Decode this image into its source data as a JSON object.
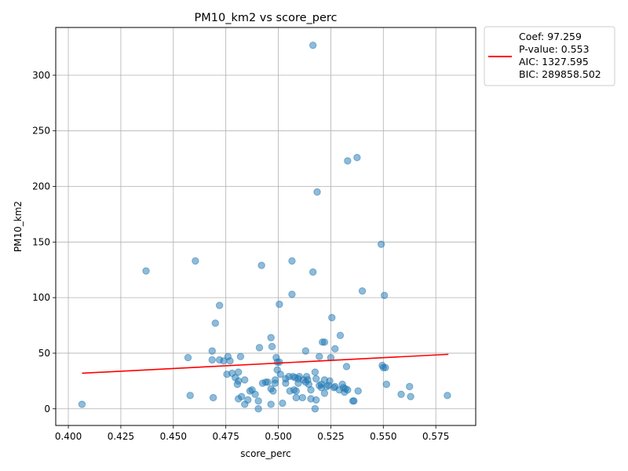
{
  "chart_data": {
    "type": "scatter",
    "title": "PM10_km2 vs score_perc",
    "xlabel": "score_perc",
    "ylabel": "PM10_km2",
    "xlim": [
      0.394,
      0.594
    ],
    "ylim": [
      -15,
      343
    ],
    "x_ticks": [
      "0.400",
      "0.425",
      "0.450",
      "0.475",
      "0.500",
      "0.525",
      "0.550",
      "0.575"
    ],
    "x_tick_values": [
      0.4,
      0.425,
      0.45,
      0.475,
      0.5,
      0.525,
      0.55,
      0.575
    ],
    "y_ticks": [
      "0",
      "50",
      "100",
      "150",
      "200",
      "250",
      "300"
    ],
    "y_tick_values": [
      0,
      50,
      100,
      150,
      200,
      250,
      300
    ],
    "grid": true,
    "point_color": "#1f77b4",
    "line_color": "#ff0000",
    "legend_position": "outside-top-right",
    "legend": {
      "lines": [
        "Coef: 97.259",
        "P-value: 0.553",
        "AIC: 1327.595",
        "BIC: 289858.502"
      ]
    },
    "trend_line": {
      "x": [
        0.4065,
        0.581
      ],
      "y": [
        32,
        49
      ]
    },
    "points": [
      [
        0.4065,
        4
      ],
      [
        0.437,
        124
      ],
      [
        0.457,
        46
      ],
      [
        0.458,
        12
      ],
      [
        0.4605,
        133
      ],
      [
        0.4685,
        52
      ],
      [
        0.4685,
        44
      ],
      [
        0.469,
        10
      ],
      [
        0.47,
        77
      ],
      [
        0.472,
        93
      ],
      [
        0.472,
        44
      ],
      [
        0.474,
        43
      ],
      [
        0.4755,
        31
      ],
      [
        0.476,
        47
      ],
      [
        0.477,
        43
      ],
      [
        0.478,
        32
      ],
      [
        0.4795,
        28
      ],
      [
        0.4805,
        22
      ],
      [
        0.481,
        25
      ],
      [
        0.481,
        33
      ],
      [
        0.482,
        47
      ],
      [
        0.481,
        9
      ],
      [
        0.4825,
        11
      ],
      [
        0.484,
        26
      ],
      [
        0.484,
        4
      ],
      [
        0.4855,
        8
      ],
      [
        0.4865,
        16
      ],
      [
        0.4875,
        17
      ],
      [
        0.489,
        13
      ],
      [
        0.4905,
        7
      ],
      [
        0.4905,
        0
      ],
      [
        0.491,
        55
      ],
      [
        0.492,
        129
      ],
      [
        0.4925,
        23
      ],
      [
        0.494,
        24
      ],
      [
        0.495,
        24
      ],
      [
        0.4965,
        18
      ],
      [
        0.4965,
        4
      ],
      [
        0.4965,
        64
      ],
      [
        0.497,
        56
      ],
      [
        0.4975,
        16
      ],
      [
        0.4985,
        26
      ],
      [
        0.4985,
        23
      ],
      [
        0.499,
        46
      ],
      [
        0.4995,
        35
      ],
      [
        0.4995,
        42
      ],
      [
        0.5005,
        94
      ],
      [
        0.5005,
        42
      ],
      [
        0.501,
        31
      ],
      [
        0.502,
        5
      ],
      [
        0.5035,
        27
      ],
      [
        0.5035,
        23
      ],
      [
        0.505,
        29
      ],
      [
        0.5055,
        16
      ],
      [
        0.5065,
        103
      ],
      [
        0.5065,
        133
      ],
      [
        0.507,
        29
      ],
      [
        0.5075,
        17
      ],
      [
        0.508,
        28
      ],
      [
        0.5085,
        10
      ],
      [
        0.5085,
        16
      ],
      [
        0.5095,
        27
      ],
      [
        0.5095,
        23
      ],
      [
        0.51,
        29
      ],
      [
        0.5115,
        10
      ],
      [
        0.512,
        26
      ],
      [
        0.513,
        52
      ],
      [
        0.513,
        24
      ],
      [
        0.5135,
        29
      ],
      [
        0.514,
        26
      ],
      [
        0.5145,
        22
      ],
      [
        0.5155,
        9
      ],
      [
        0.5155,
        17
      ],
      [
        0.5165,
        123
      ],
      [
        0.5175,
        33
      ],
      [
        0.5175,
        0
      ],
      [
        0.518,
        27
      ],
      [
        0.518,
        8
      ],
      [
        0.5185,
        195
      ],
      [
        0.5195,
        47
      ],
      [
        0.5195,
        21
      ],
      [
        0.5205,
        22
      ],
      [
        0.5205,
        19
      ],
      [
        0.521,
        60
      ],
      [
        0.522,
        60
      ],
      [
        0.522,
        26
      ],
      [
        0.522,
        14
      ],
      [
        0.523,
        20
      ],
      [
        0.524,
        21
      ],
      [
        0.5245,
        25
      ],
      [
        0.525,
        46
      ],
      [
        0.5255,
        82
      ],
      [
        0.527,
        54
      ],
      [
        0.5265,
        19
      ],
      [
        0.527,
        20
      ],
      [
        0.529,
        17
      ],
      [
        0.5295,
        66
      ],
      [
        0.5305,
        22
      ],
      [
        0.531,
        19
      ],
      [
        0.5315,
        15
      ],
      [
        0.532,
        18
      ],
      [
        0.5325,
        38
      ],
      [
        0.533,
        223
      ],
      [
        0.533,
        17
      ],
      [
        0.5355,
        7
      ],
      [
        0.536,
        7
      ],
      [
        0.5375,
        226
      ],
      [
        0.538,
        16
      ],
      [
        0.54,
        106
      ],
      [
        0.549,
        148
      ],
      [
        0.5495,
        39
      ],
      [
        0.55,
        37
      ],
      [
        0.551,
        37
      ],
      [
        0.5505,
        102
      ],
      [
        0.5515,
        22
      ],
      [
        0.5585,
        13
      ],
      [
        0.5625,
        20
      ],
      [
        0.563,
        11
      ],
      [
        0.5805,
        12
      ],
      [
        0.5165,
        327
      ]
    ]
  }
}
